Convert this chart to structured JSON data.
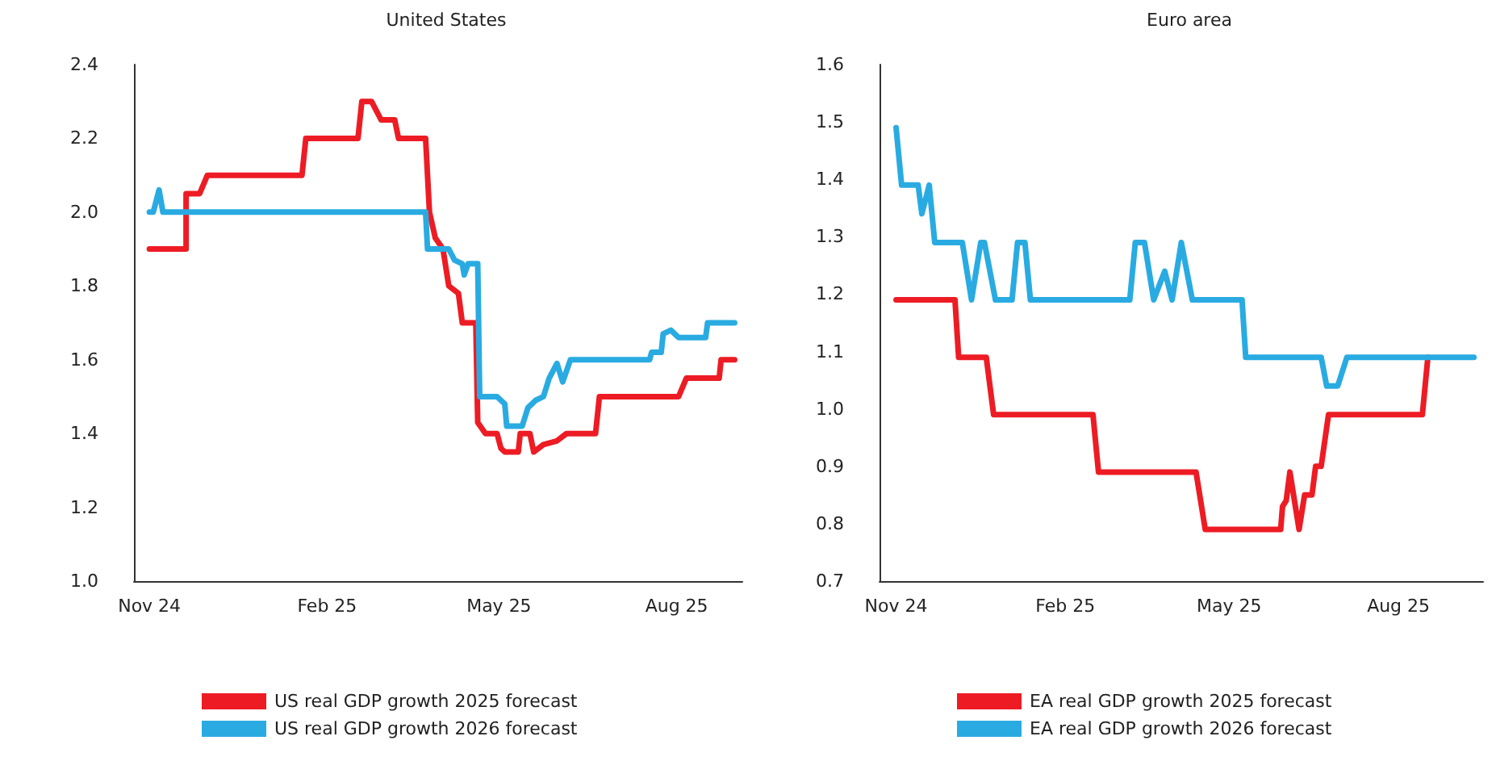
{
  "chart_data": [
    {
      "type": "line",
      "title": "United States",
      "legend": "bottom",
      "marker": "none",
      "line_style": "solid",
      "xlim": [
        "2024-10-24",
        "2025-09-04"
      ],
      "xticks": [
        {
          "value": "2024-11-01",
          "label": "Nov 24"
        },
        {
          "value": "2025-02-01",
          "label": "Feb 25"
        },
        {
          "value": "2025-05-01",
          "label": "May 25"
        },
        {
          "value": "2025-08-01",
          "label": "Aug 25"
        }
      ],
      "ylim": [
        1.0,
        2.4
      ],
      "yticks": [
        {
          "value": 1.0,
          "label": "1.0"
        },
        {
          "value": 1.2,
          "label": "1.2"
        },
        {
          "value": 1.4,
          "label": "1.4"
        },
        {
          "value": 1.6,
          "label": "1.6"
        },
        {
          "value": 1.8,
          "label": "1.8"
        },
        {
          "value": 2.0,
          "label": "2.0"
        },
        {
          "value": 2.2,
          "label": "2.2"
        },
        {
          "value": 2.4,
          "label": "2.4"
        }
      ],
      "series": [
        {
          "name": "US real GDP growth 2025 forecast",
          "color": "#ed1c24",
          "x": [
            "2024-11-01",
            "2024-11-20",
            "2024-11-20",
            "2024-11-27",
            "2024-12-01",
            "2025-01-19",
            "2025-01-21",
            "2025-02-17",
            "2025-02-19",
            "2025-02-24",
            "2025-03-01",
            "2025-03-08",
            "2025-03-10",
            "2025-03-24",
            "2025-03-26",
            "2025-03-29",
            "2025-04-02",
            "2025-04-05",
            "2025-04-10",
            "2025-04-12",
            "2025-04-19",
            "2025-04-20",
            "2025-04-24",
            "2025-04-30",
            "2025-05-02",
            "2025-05-04",
            "2025-05-11",
            "2025-05-12",
            "2025-05-17",
            "2025-05-19",
            "2025-05-24",
            "2025-05-31",
            "2025-06-05",
            "2025-06-20",
            "2025-06-22",
            "2025-08-02",
            "2025-08-06",
            "2025-08-23",
            "2025-08-24",
            "2025-08-31"
          ],
          "values": [
            1.9,
            1.9,
            2.05,
            2.05,
            2.1,
            2.1,
            2.2,
            2.2,
            2.3,
            2.3,
            2.25,
            2.25,
            2.2,
            2.2,
            2.0,
            1.93,
            1.9,
            1.8,
            1.78,
            1.7,
            1.7,
            1.43,
            1.4,
            1.4,
            1.36,
            1.35,
            1.35,
            1.4,
            1.4,
            1.35,
            1.37,
            1.38,
            1.4,
            1.4,
            1.5,
            1.5,
            1.55,
            1.55,
            1.6,
            1.6
          ]
        },
        {
          "name": "US real GDP growth 2026 forecast",
          "color": "#29abe2",
          "x": [
            "2024-11-01",
            "2024-11-03",
            "2024-11-06",
            "2024-11-08",
            "2025-03-24",
            "2025-03-25",
            "2025-04-05",
            "2025-04-08",
            "2025-04-12",
            "2025-04-13",
            "2025-04-15",
            "2025-04-20",
            "2025-04-21",
            "2025-04-30",
            "2025-05-04",
            "2025-05-05",
            "2025-05-13",
            "2025-05-16",
            "2025-05-20",
            "2025-05-24",
            "2025-05-27",
            "2025-05-31",
            "2025-06-03",
            "2025-06-07",
            "2025-07-18",
            "2025-07-19",
            "2025-07-24",
            "2025-07-25",
            "2025-07-29",
            "2025-08-02",
            "2025-08-16",
            "2025-08-17",
            "2025-08-31"
          ],
          "values": [
            2.0,
            2.0,
            2.06,
            2.0,
            2.0,
            1.9,
            1.9,
            1.87,
            1.86,
            1.83,
            1.86,
            1.86,
            1.5,
            1.5,
            1.48,
            1.42,
            1.42,
            1.47,
            1.49,
            1.5,
            1.55,
            1.59,
            1.54,
            1.6,
            1.6,
            1.62,
            1.62,
            1.67,
            1.68,
            1.66,
            1.66,
            1.7,
            1.7
          ]
        }
      ]
    },
    {
      "type": "line",
      "title": "Euro area",
      "legend": "bottom",
      "marker": "none",
      "line_style": "solid",
      "xlim": [
        "2024-10-23",
        "2025-09-16"
      ],
      "xticks": [
        {
          "value": "2024-11-01",
          "label": "Nov 24"
        },
        {
          "value": "2025-02-01",
          "label": "Feb 25"
        },
        {
          "value": "2025-05-01",
          "label": "May 25"
        },
        {
          "value": "2025-08-01",
          "label": "Aug 25"
        }
      ],
      "ylim": [
        0.7,
        1.6
      ],
      "yticks": [
        {
          "value": 0.7,
          "label": "0.7"
        },
        {
          "value": 0.8,
          "label": "0.8"
        },
        {
          "value": 0.9,
          "label": "0.9"
        },
        {
          "value": 1.0,
          "label": "1.0"
        },
        {
          "value": 1.1,
          "label": "1.1"
        },
        {
          "value": 1.2,
          "label": "1.2"
        },
        {
          "value": 1.3,
          "label": "1.3"
        },
        {
          "value": 1.4,
          "label": "1.4"
        },
        {
          "value": 1.5,
          "label": "1.5"
        },
        {
          "value": 1.6,
          "label": "1.6"
        }
      ],
      "series": [
        {
          "name": "EA real GDP growth 2025 forecast",
          "color": "#ed1c24",
          "x": [
            "2024-11-01",
            "2024-12-03",
            "2024-12-05",
            "2024-12-20",
            "2024-12-24",
            "2025-02-16",
            "2025-02-19",
            "2025-04-13",
            "2025-04-18",
            "2025-05-29",
            "2025-05-30",
            "2025-06-01",
            "2025-06-03",
            "2025-06-08",
            "2025-06-10",
            "2025-06-11",
            "2025-06-15",
            "2025-06-17",
            "2025-06-20",
            "2025-06-24",
            "2025-08-14",
            "2025-08-17"
          ],
          "values": [
            1.19,
            1.19,
            1.09,
            1.09,
            0.99,
            0.99,
            0.89,
            0.89,
            0.79,
            0.79,
            0.83,
            0.84,
            0.89,
            0.79,
            0.83,
            0.85,
            0.85,
            0.9,
            0.9,
            0.99,
            0.99,
            1.09
          ]
        },
        {
          "name": "EA real GDP growth 2026 forecast",
          "color": "#29abe2",
          "x": [
            "2024-11-01",
            "2024-11-04",
            "2024-11-13",
            "2024-11-15",
            "2024-11-19",
            "2024-11-22",
            "2024-12-07",
            "2024-12-12",
            "2024-12-17",
            "2024-12-19",
            "2024-12-25",
            "2025-01-03",
            "2025-01-06",
            "2025-01-10",
            "2025-01-13",
            "2025-03-08",
            "2025-03-11",
            "2025-03-16",
            "2025-03-21",
            "2025-03-27",
            "2025-03-31",
            "2025-04-05",
            "2025-04-11",
            "2025-05-08",
            "2025-05-10",
            "2025-06-20",
            "2025-06-23",
            "2025-06-29",
            "2025-07-04",
            "2025-09-11"
          ],
          "values": [
            1.49,
            1.39,
            1.39,
            1.34,
            1.39,
            1.29,
            1.29,
            1.19,
            1.29,
            1.29,
            1.19,
            1.19,
            1.29,
            1.29,
            1.19,
            1.19,
            1.29,
            1.29,
            1.19,
            1.24,
            1.19,
            1.29,
            1.19,
            1.19,
            1.09,
            1.09,
            1.04,
            1.04,
            1.09,
            1.09
          ]
        }
      ]
    }
  ]
}
